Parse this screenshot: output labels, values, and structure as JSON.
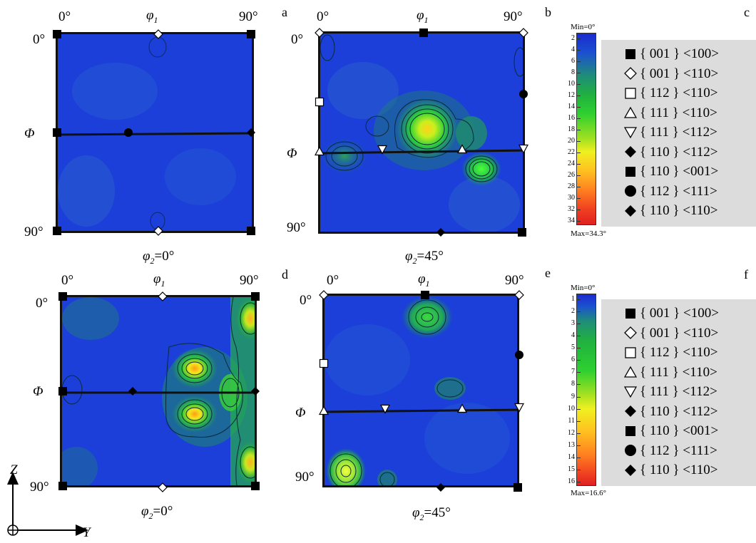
{
  "panel_letters": [
    "a",
    "b",
    "c",
    "d",
    "e",
    "f"
  ],
  "axis_labels": {
    "phi1": "φ",
    "phi1_sub": "1",
    "Phi": "Φ",
    "deg0": "0°",
    "deg90": "90°"
  },
  "section_labels": {
    "top_left": {
      "phi2": "φ",
      "sub": "2",
      "eq": "=0°"
    },
    "top_mid": {
      "phi2": "φ",
      "sub": "2",
      "eq": "=45°"
    },
    "bottom_left": {
      "phi2": "φ",
      "sub": "2",
      "eq": "=0°"
    },
    "bottom_mid": {
      "phi2": "φ",
      "sub": "2",
      "eq": "=45°"
    }
  },
  "colorbar_top": {
    "min_label": "Min=0°",
    "max_label": "Max=34.3°",
    "ticks": [
      "2",
      "4",
      "6",
      "8",
      "10",
      "12",
      "14",
      "16",
      "18",
      "20",
      "22",
      "24",
      "26",
      "28",
      "30",
      "32",
      "34"
    ]
  },
  "colorbar_bottom": {
    "min_label": "Min=0°",
    "max_label": "Max=16.6°",
    "ticks": [
      "1",
      "2",
      "3",
      "4",
      "5",
      "6",
      "7",
      "8",
      "9",
      "10",
      "11",
      "12",
      "13",
      "14",
      "15",
      "16"
    ]
  },
  "legend_items": [
    {
      "symbol": "filled-square",
      "text": "{ 001 } <100>"
    },
    {
      "symbol": "open-diamond",
      "text": "{ 001 } <110>"
    },
    {
      "symbol": "open-square",
      "text": "{ 112 } <110>"
    },
    {
      "symbol": "open-triangle-up",
      "text": "{ 111 } <110>"
    },
    {
      "symbol": "open-triangle-down",
      "text": "{ 111 } <112>"
    },
    {
      "symbol": "filled-diamond",
      "text": "{ 110 } <112>"
    },
    {
      "symbol": "filled-square",
      "text": "{ 110 } <001>"
    },
    {
      "symbol": "filled-circle",
      "text": "{ 112 } <111>"
    },
    {
      "symbol": "filled-diamond",
      "text": "{ 110 } <110>"
    }
  ],
  "coordinate_axes": {
    "z": "Z",
    "y": "Y"
  }
}
